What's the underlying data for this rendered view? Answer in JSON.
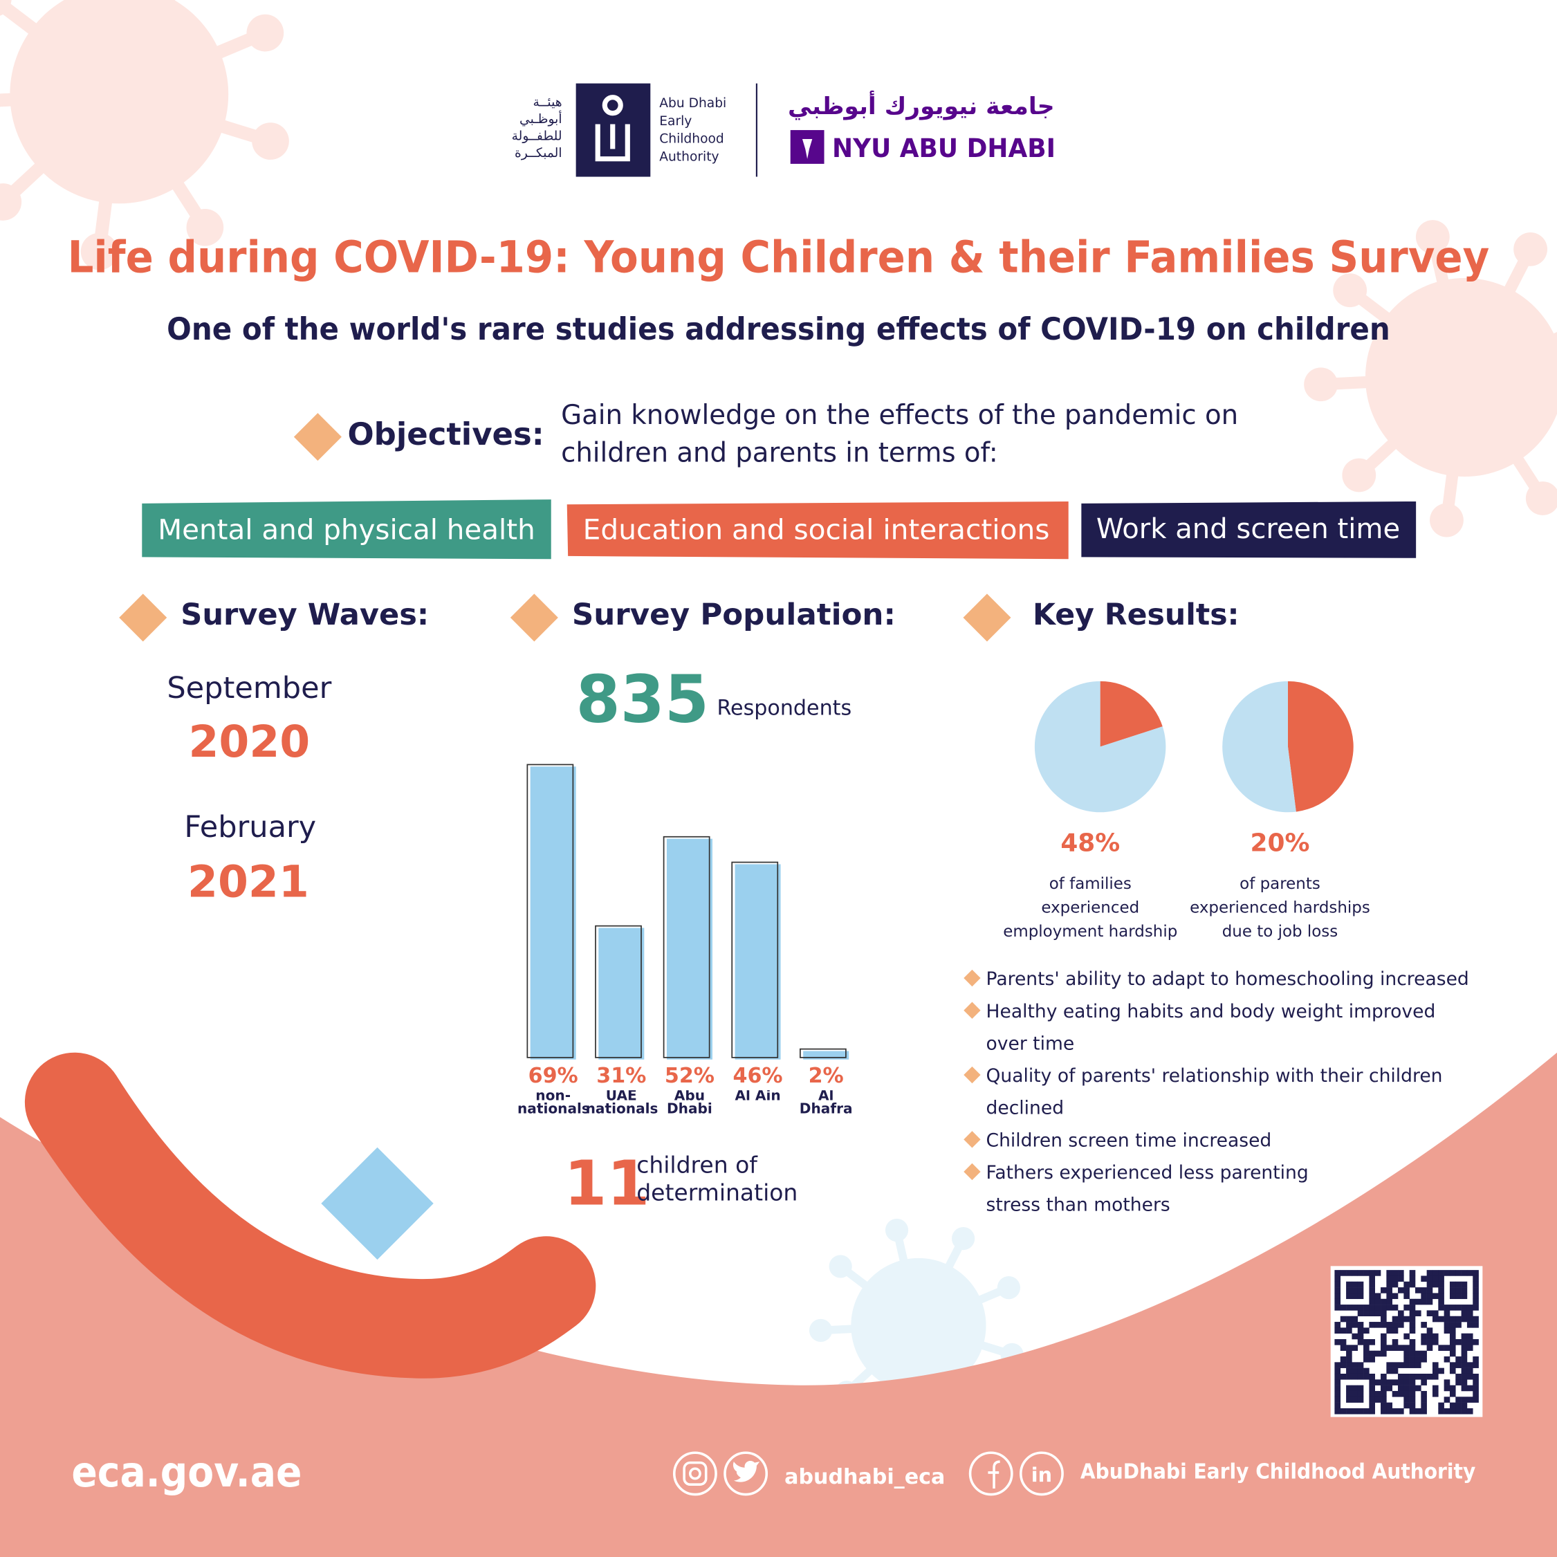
{
  "header": {
    "eca_arabic": [
      "هيئــة",
      "أبوظـبي",
      "للطفــولة",
      "المبكــرة"
    ],
    "eca_english": [
      "Abu Dhabi",
      "Early",
      "Childhood",
      "Authority"
    ],
    "nyu_arabic": "جامعة نيويورك أبوظبي",
    "nyu_english": "NYU ABU DHABI"
  },
  "title": "Life during COVID-19: Young Children & their Families Survey",
  "subtitle": "One of the world's rare studies addressing effects of COVID-19 on children",
  "objectives": {
    "label": "Objectives:",
    "text": [
      "Gain knowledge on the effects of the pandemic on",
      "children and parents in terms of:"
    ],
    "topics": [
      "Mental and physical health",
      "Education and social interactions",
      "Work and screen time"
    ]
  },
  "survey_waves": {
    "heading": "Survey Waves:",
    "waves": [
      {
        "month": "September",
        "year": "2020"
      },
      {
        "month": "February",
        "year": "2021"
      }
    ]
  },
  "survey_population": {
    "heading": "Survey Population:",
    "respondents": "835",
    "respondents_label": "Respondents",
    "children_count": "11",
    "children_label": [
      "children of",
      "determination"
    ]
  },
  "key_results": {
    "heading": "Key Results:",
    "stats": [
      {
        "label": "48%",
        "text": [
          "of families",
          "experienced",
          "employment hardship"
        ]
      },
      {
        "label": "20%",
        "text": [
          "of parents",
          "experienced hardships",
          "due to job loss"
        ]
      }
    ],
    "findings": [
      [
        "Parents' ability to adapt to homeschooling increased"
      ],
      [
        "Healthy eating habits and body weight improved",
        "over time"
      ],
      [
        "Quality of parents' relationship with their children",
        "declined"
      ],
      [
        "Children screen time increased"
      ],
      [
        "Fathers experienced less parenting",
        "stress than mothers"
      ]
    ]
  },
  "footer": {
    "website": "eca.gov.ae",
    "handle": "abudhabi_eca",
    "linkedin": "in",
    "name": "AbuDhabi Early Childhood Authority"
  },
  "chart_data": [
    {
      "type": "bar",
      "categories": [
        "non-nationals",
        "UAE nationals",
        "Abu Dhabi",
        "Al Ain",
        "Al Dhafra"
      ],
      "values": [
        69,
        31,
        52,
        46,
        2
      ],
      "value_labels": [
        "69%",
        "31%",
        "52%",
        "46%",
        "2%"
      ],
      "color": "#9bd0ee"
    },
    {
      "type": "pie",
      "values": [
        20,
        80
      ],
      "colors": [
        "#e8664a",
        "#bfe0f2"
      ]
    },
    {
      "type": "pie",
      "values": [
        48,
        52
      ],
      "colors": [
        "#e8664a",
        "#bfe0f2"
      ]
    }
  ]
}
